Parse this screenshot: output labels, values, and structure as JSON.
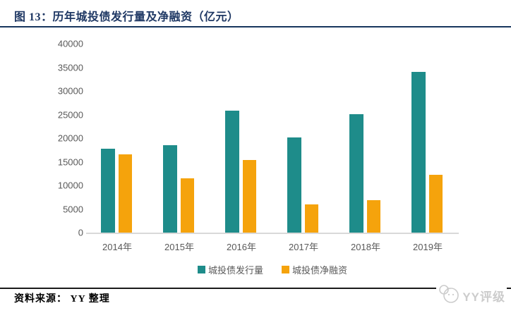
{
  "header": {
    "title": "图 13：历年城投债发行量及净融资（亿元）"
  },
  "chart_data": {
    "type": "bar",
    "title": "历年城投债发行量及净融资（亿元）",
    "categories": [
      "2014年",
      "2015年",
      "2016年",
      "2017年",
      "2018年",
      "2019年"
    ],
    "series": [
      {
        "name": "城投债发行量",
        "color": "#1e8c8a",
        "values": [
          17800,
          18500,
          25800,
          20100,
          25100,
          34100
        ]
      },
      {
        "name": "城投债净融资",
        "color": "#f5a30c",
        "values": [
          16500,
          11500,
          15300,
          5900,
          6800,
          12300
        ]
      }
    ],
    "ylim": [
      0,
      40000
    ],
    "yticks": [
      "40000",
      "35000",
      "30000",
      "25000",
      "20000",
      "15000",
      "10000",
      "5000",
      "0"
    ],
    "grid": false,
    "legend_position": "bottom"
  },
  "footer": {
    "source": "资料来源： YY 整理",
    "watermark": "YY评级"
  },
  "colors": {
    "title": "#1f3864",
    "rule_top": "#17365d",
    "rule_bottom": "#1a1a1a",
    "axis_text": "#595959",
    "baseline": "#d9d9d9",
    "teal_series": "#1e8c8a",
    "orange_series": "#f5a30c",
    "watermark": "#cccccc"
  }
}
